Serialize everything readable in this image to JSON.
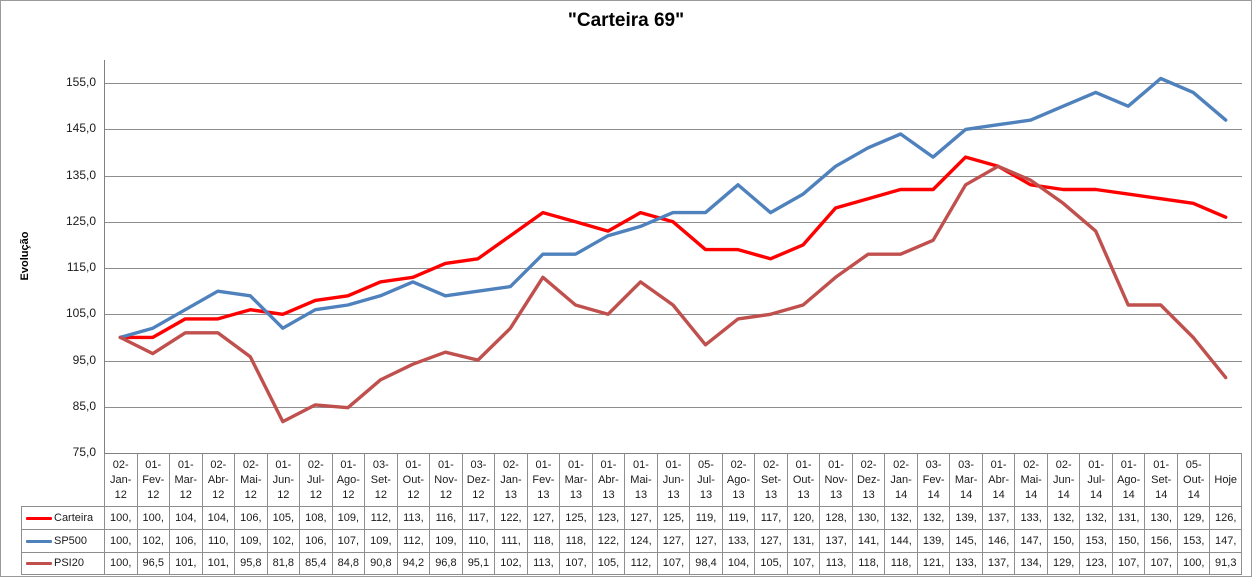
{
  "title": "\"Carteira 69\"",
  "chart_data": {
    "type": "line",
    "title": "\"Carteira 69\"",
    "xlabel": "",
    "ylabel": "Evolução",
    "ylim": [
      75,
      160
    ],
    "ytick_step": 10,
    "ytick_labels": [
      "155,0",
      "145,0",
      "135,0",
      "125,0",
      "115,0",
      "105,0",
      "95,0",
      "85,0",
      "75,0"
    ],
    "ytick_values": [
      155,
      145,
      135,
      125,
      115,
      105,
      95,
      85,
      75
    ],
    "grid": true,
    "legend_position": "data-table-left",
    "data_table_shown": true,
    "categories": [
      "02-Jan-12",
      "01-Fev-12",
      "01-Mar-12",
      "02-Abr-12",
      "02-Mai-12",
      "01-Jun-12",
      "02-Jul-12",
      "01-Ago-12",
      "03-Set-12",
      "01-Out-12",
      "01-Nov-12",
      "03-Dez-12",
      "02-Jan-13",
      "01-Fev-13",
      "01-Mar-13",
      "01-Abr-13",
      "01-Mai-13",
      "01-Jun-13",
      "05-Jul-13",
      "02-Ago-13",
      "02-Set-13",
      "01-Out-13",
      "01-Nov-13",
      "02-Dez-13",
      "02-Jan-14",
      "03-Fev-14",
      "03-Mar-14",
      "01-Abr-14",
      "02-Mai-14",
      "02-Jun-14",
      "01-Jul-14",
      "01-Ago-14",
      "01-Set-14",
      "05-Out-14",
      "Hoje"
    ],
    "series": [
      {
        "name": "Carteira",
        "color": "#ff0000",
        "values": [
          100,
          100,
          104,
          104,
          106,
          105,
          108,
          109,
          112,
          113,
          116,
          117,
          122,
          127,
          125,
          123,
          127,
          125,
          119,
          119,
          117,
          120,
          128,
          130,
          132,
          132,
          139,
          137,
          133,
          132,
          132,
          131,
          130,
          129,
          126
        ],
        "display": [
          "100,",
          "100,",
          "104,",
          "104,",
          "106,",
          "105,",
          "108,",
          "109,",
          "112,",
          "113,",
          "116,",
          "117,",
          "122,",
          "127,",
          "125,",
          "123,",
          "127,",
          "125,",
          "119,",
          "119,",
          "117,",
          "120,",
          "128,",
          "130,",
          "132,",
          "132,",
          "139,",
          "137,",
          "133,",
          "132,",
          "132,",
          "131,",
          "130,",
          "129,",
          "126,"
        ]
      },
      {
        "name": "SP500",
        "color": "#4f81bd",
        "values": [
          100,
          102,
          106,
          110,
          109,
          102,
          106,
          107,
          109,
          112,
          109,
          110,
          111,
          118,
          118,
          122,
          124,
          127,
          127,
          133,
          127,
          131,
          137,
          141,
          144,
          139,
          145,
          146,
          147,
          150,
          153,
          150,
          156,
          153,
          147
        ],
        "display": [
          "100,",
          "102,",
          "106,",
          "110,",
          "109,",
          "102,",
          "106,",
          "107,",
          "109,",
          "112,",
          "109,",
          "110,",
          "111,",
          "118,",
          "118,",
          "122,",
          "124,",
          "127,",
          "127,",
          "133,",
          "127,",
          "131,",
          "137,",
          "141,",
          "144,",
          "139,",
          "145,",
          "146,",
          "147,",
          "150,",
          "153,",
          "150,",
          "156,",
          "153,",
          "147,"
        ]
      },
      {
        "name": "PSI20",
        "color": "#c0504d",
        "values": [
          100,
          96.5,
          101,
          101,
          95.8,
          81.8,
          85.4,
          84.8,
          90.8,
          94.2,
          96.8,
          95.1,
          102,
          113,
          107,
          105,
          112,
          107,
          98.4,
          104,
          105,
          107,
          113,
          118,
          118,
          121,
          133,
          137,
          134,
          129,
          123,
          107,
          107,
          100,
          91.3
        ],
        "display": [
          "100,",
          "96,5",
          "101,",
          "101,",
          "95,8",
          "81,8",
          "85,4",
          "84,8",
          "90,8",
          "94,2",
          "96,8",
          "95,1",
          "102,",
          "113,",
          "107,",
          "105,",
          "112,",
          "107,",
          "98,4",
          "104,",
          "105,",
          "107,",
          "113,",
          "118,",
          "118,",
          "121,",
          "133,",
          "137,",
          "134,",
          "129,",
          "123,",
          "107,",
          "107,",
          "100,",
          "91,3"
        ]
      }
    ],
    "colors": {
      "axis": "#808080",
      "gridline": "#8e8e8e",
      "table_border": "#8e8e8e",
      "text": "#1a1a1a"
    }
  }
}
